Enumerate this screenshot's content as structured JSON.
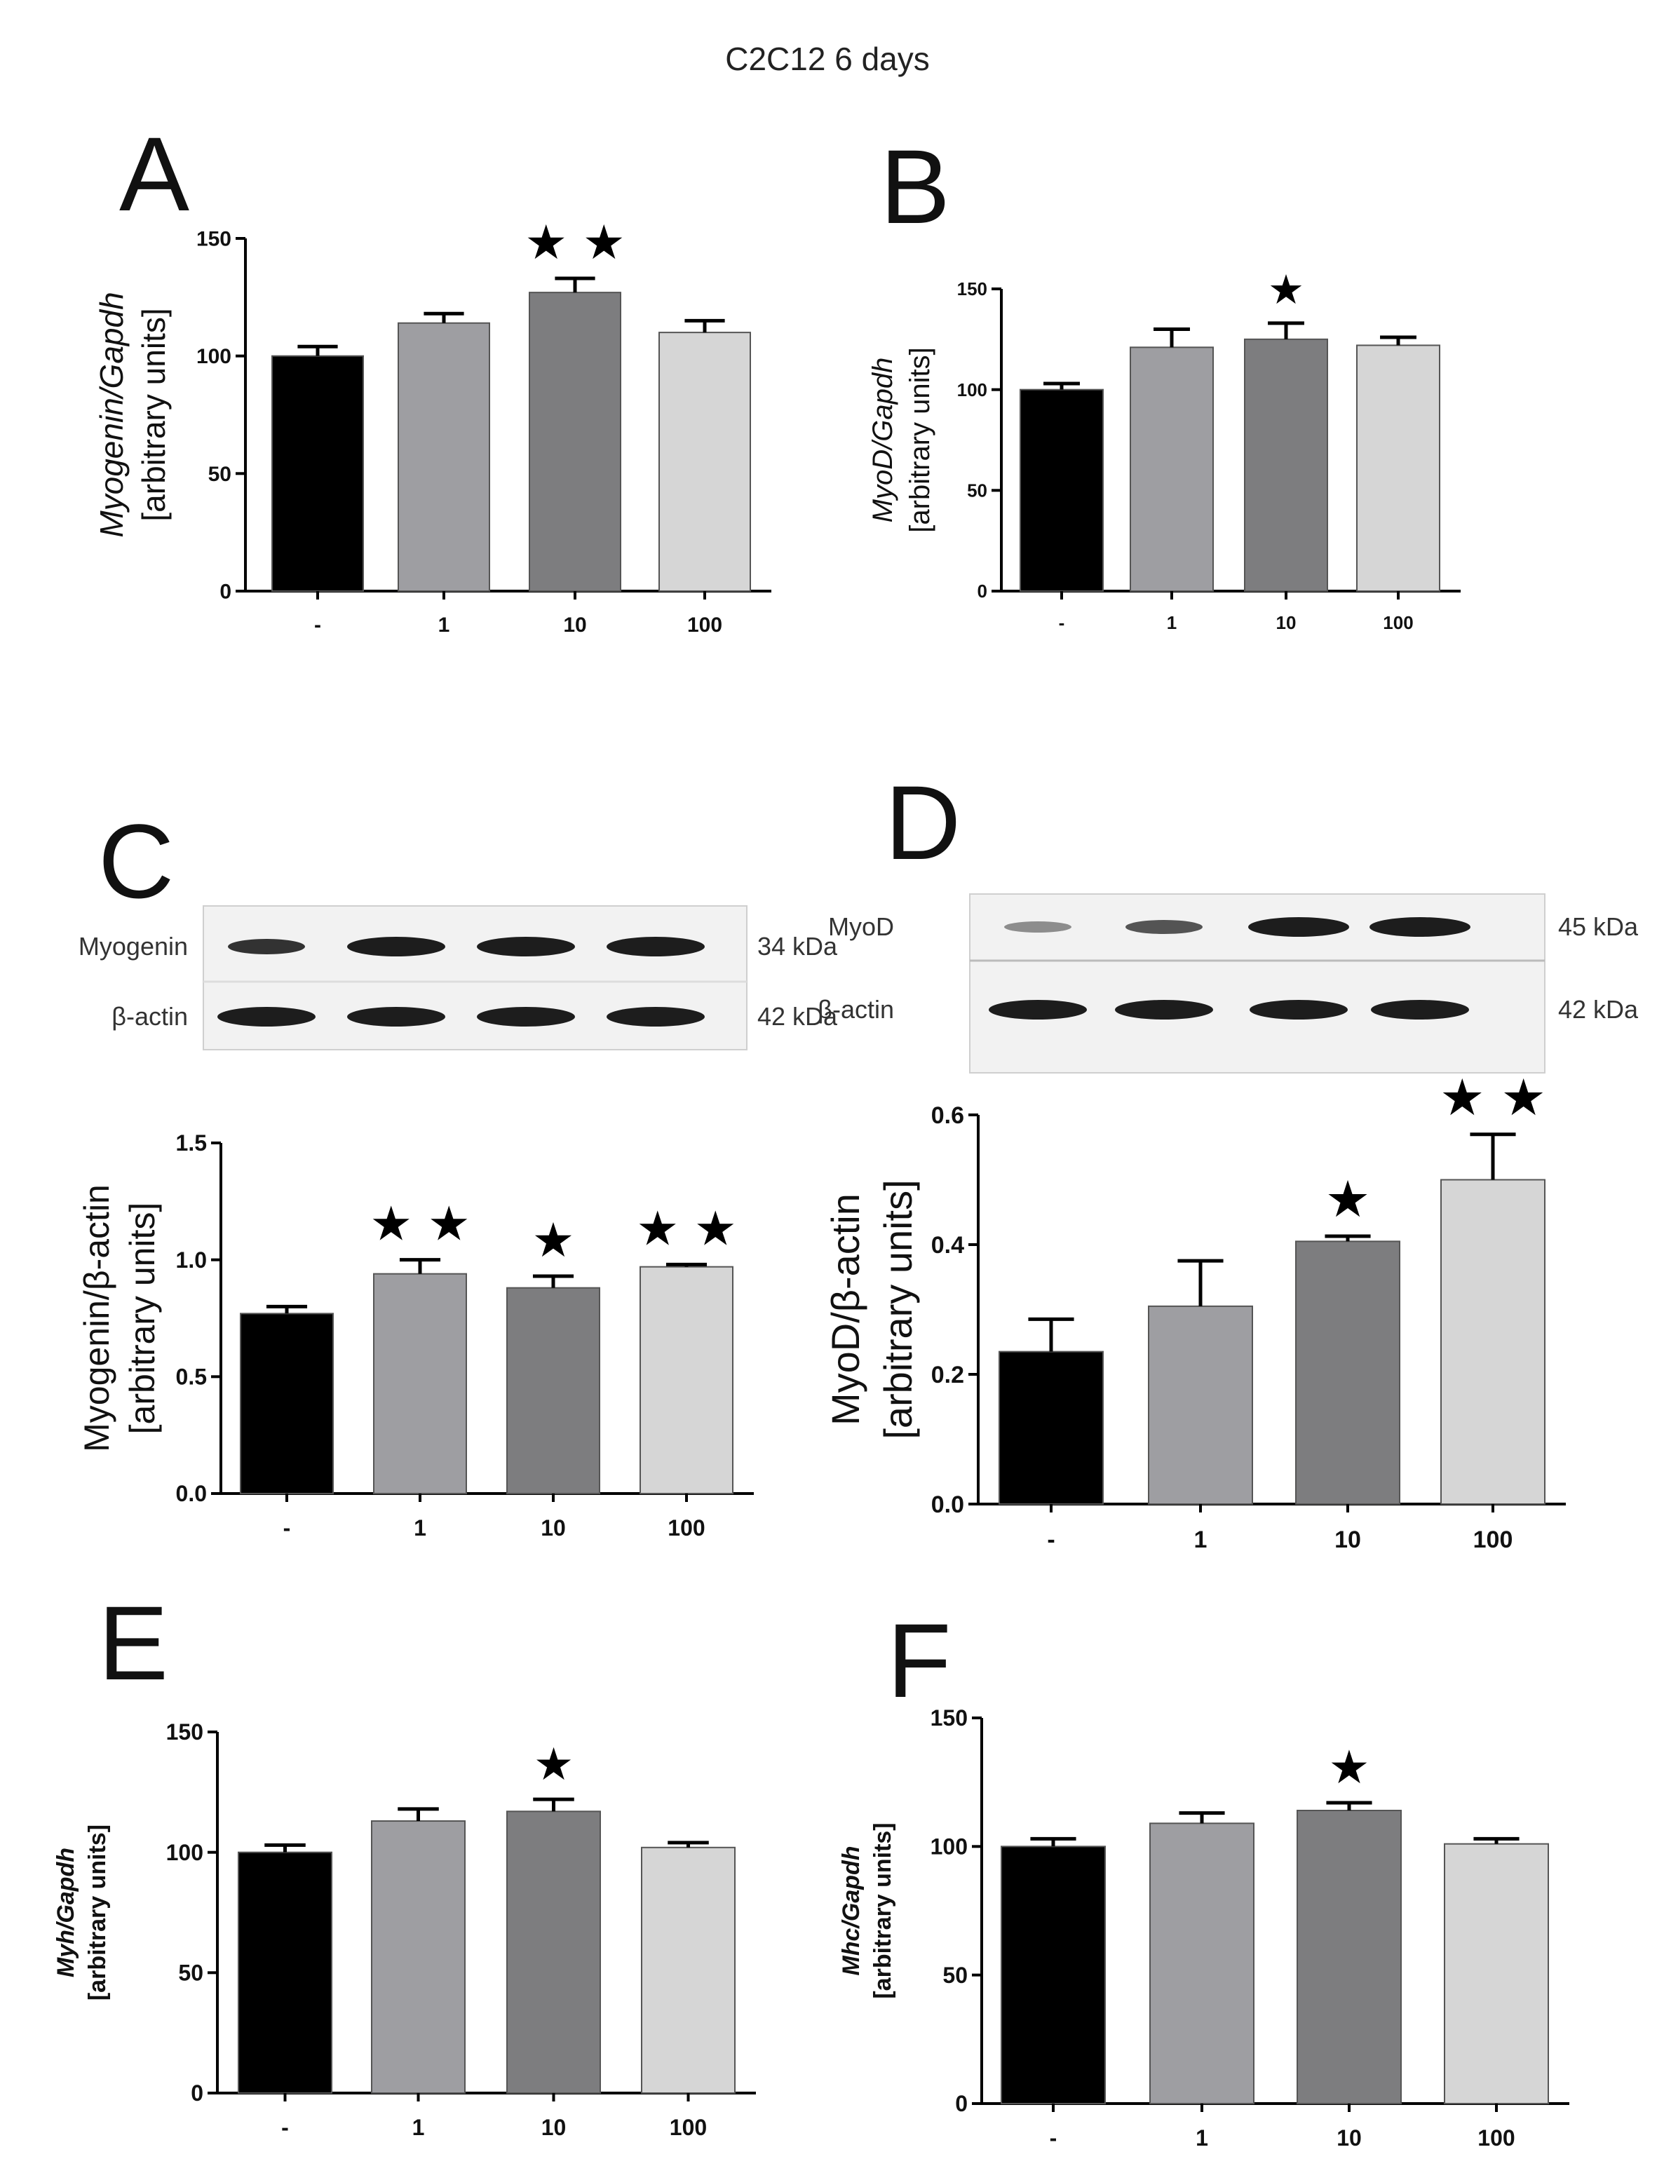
{
  "title": "C2C12 6 days",
  "chart_data": [
    {
      "panel": "A",
      "type": "bar",
      "categories": [
        "-",
        "1",
        "10",
        "100"
      ],
      "values": [
        100,
        114,
        127,
        110
      ],
      "errors": [
        4,
        4,
        6,
        5
      ],
      "ylim": [
        0,
        150
      ],
      "yticks": [
        0,
        50,
        100,
        150
      ],
      "ylabel_top": "Myogenin/Gapdh",
      "ylabel_bottom": "[arbitrary units]",
      "stars": [
        "",
        "",
        "★ ★",
        ""
      ],
      "colors": [
        "#000000",
        "#9e9ea2",
        "#7d7d7f",
        "#d6d6d6"
      ]
    },
    {
      "panel": "B",
      "type": "bar",
      "categories": [
        "-",
        "1",
        "10",
        "100"
      ],
      "values": [
        100,
        121,
        125,
        122
      ],
      "errors": [
        3,
        9,
        8,
        4
      ],
      "ylim": [
        0,
        150
      ],
      "yticks": [
        0,
        50,
        100,
        150
      ],
      "ylabel_top": "MyoD/Gapdh",
      "ylabel_bottom": "[arbitrary units]",
      "stars": [
        "",
        "",
        "★",
        ""
      ],
      "colors": [
        "#000000",
        "#9e9ea2",
        "#7d7d7f",
        "#d6d6d6"
      ]
    },
    {
      "panel": "C",
      "type": "bar",
      "categories": [
        "-",
        "1",
        "10",
        "100"
      ],
      "values": [
        0.77,
        0.94,
        0.88,
        0.97
      ],
      "errors": [
        0.03,
        0.06,
        0.05,
        0.01
      ],
      "ylim": [
        0,
        1.5
      ],
      "yticks": [
        0.0,
        0.5,
        1.0,
        1.5
      ],
      "ylabel_top": "Myogenin/β-actin",
      "ylabel_bottom": "[arbitrary units]",
      "stars": [
        "",
        "★ ★",
        "★",
        "★ ★"
      ],
      "colors": [
        "#000000",
        "#9e9ea2",
        "#7d7d7f",
        "#d6d6d6"
      ],
      "blot": [
        {
          "label": "Myogenin",
          "kda": "34 kDa"
        },
        {
          "label": "β-actin",
          "kda": "42 kDa"
        }
      ]
    },
    {
      "panel": "D",
      "type": "bar",
      "categories": [
        "-",
        "1",
        "10",
        "100"
      ],
      "values": [
        0.235,
        0.305,
        0.405,
        0.5
      ],
      "errors": [
        0.05,
        0.07,
        0.008,
        0.07
      ],
      "ylim": [
        0,
        0.6
      ],
      "yticks": [
        0.0,
        0.2,
        0.4,
        0.6
      ],
      "ylabel_top": "MyoD/β-actin",
      "ylabel_bottom": "[arbitrary units]",
      "stars": [
        "",
        "",
        "★",
        "★ ★"
      ],
      "colors": [
        "#000000",
        "#9e9ea2",
        "#7d7d7f",
        "#d6d6d6"
      ],
      "blot": [
        {
          "label": "MyoD",
          "kda": "45 kDa"
        },
        {
          "label": "β-actin",
          "kda": "42 kDa"
        }
      ]
    },
    {
      "panel": "E",
      "type": "bar",
      "categories": [
        "-",
        "1",
        "10",
        "100"
      ],
      "values": [
        100,
        113,
        117,
        102
      ],
      "errors": [
        3,
        5,
        5,
        2
      ],
      "ylim": [
        0,
        150
      ],
      "yticks": [
        0,
        50,
        100,
        150
      ],
      "ylabel_top": "Myh/Gapdh",
      "ylabel_bottom": "[arbitrary units]",
      "stars": [
        "",
        "",
        "★",
        ""
      ],
      "colors": [
        "#000000",
        "#9e9ea2",
        "#7d7d7f",
        "#d6d6d6"
      ]
    },
    {
      "panel": "F",
      "type": "bar",
      "categories": [
        "-",
        "1",
        "10",
        "100"
      ],
      "values": [
        100,
        109,
        114,
        101
      ],
      "errors": [
        3,
        4,
        3,
        2
      ],
      "ylim": [
        0,
        150
      ],
      "yticks": [
        0,
        50,
        100,
        150
      ],
      "ylabel_top": "Mhc/Gapdh",
      "ylabel_bottom": "[arbitrary units]",
      "stars": [
        "",
        "",
        "★",
        ""
      ],
      "colors": [
        "#000000",
        "#9e9ea2",
        "#7d7d7f",
        "#d6d6d6"
      ]
    }
  ]
}
